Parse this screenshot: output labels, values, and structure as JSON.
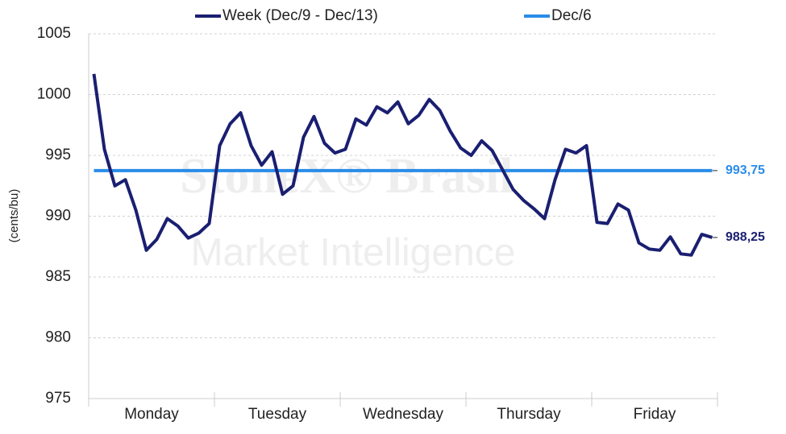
{
  "chart_data": {
    "type": "line",
    "y_label": "(cents/bu)",
    "watermark": [
      "StoneX® Brasil",
      "Market Intelligence"
    ],
    "categories": [
      null,
      null,
      null,
      null,
      null,
      null,
      "Monday",
      null,
      null,
      null,
      null,
      null,
      null,
      null,
      null,
      null,
      null,
      null,
      "Tuesday",
      null,
      null,
      null,
      null,
      null,
      null,
      null,
      null,
      null,
      null,
      null,
      "Wednesday",
      null,
      null,
      null,
      null,
      null,
      null,
      null,
      null,
      null,
      null,
      null,
      "Thursday",
      null,
      null,
      null,
      null,
      null,
      null,
      null,
      null,
      null,
      null,
      null,
      "Friday",
      null,
      null,
      null,
      null,
      null
    ],
    "series": [
      {
        "name": "Week (Dec/9 - Dec/13)",
        "color": "#1a1f71",
        "end_label": "988,25",
        "values": [
          1001.7,
          995.5,
          992.5,
          993,
          990.5,
          987.2,
          988.1,
          989.8,
          989.2,
          988.2,
          988.6,
          989.4,
          995.8,
          997.6,
          998.5,
          995.8,
          994.2,
          995.3,
          991.8,
          992.5,
          996.5,
          998.2,
          996,
          995.2,
          995.5,
          998,
          997.5,
          999,
          998.5,
          999.4,
          997.6,
          998.3,
          999.6,
          998.7,
          997,
          995.6,
          995,
          996.2,
          995.4,
          993.8,
          992.2,
          991.3,
          990.6,
          989.8,
          993,
          995.5,
          995.2,
          995.8,
          989.5,
          989.4,
          991,
          990.5,
          987.8,
          987.3,
          987.2,
          988.3,
          986.9,
          986.8,
          988.5,
          988.25
        ]
      },
      {
        "name": "Dec/6",
        "color": "#2a8ce8",
        "end_label": "993,75",
        "values": [
          993.75,
          993.75,
          993.75,
          993.75,
          993.75,
          993.75,
          993.75,
          993.75,
          993.75,
          993.75,
          993.75,
          993.75,
          993.75,
          993.75,
          993.75,
          993.75,
          993.75,
          993.75,
          993.75,
          993.75,
          993.75,
          993.75,
          993.75,
          993.75,
          993.75,
          993.75,
          993.75,
          993.75,
          993.75,
          993.75,
          993.75,
          993.75,
          993.75,
          993.75,
          993.75,
          993.75,
          993.75,
          993.75,
          993.75,
          993.75,
          993.75,
          993.75,
          993.75,
          993.75,
          993.75,
          993.75,
          993.75,
          993.75,
          993.75,
          993.75,
          993.75,
          993.75,
          993.75,
          993.75,
          993.75,
          993.75,
          993.75,
          993.75,
          993.75,
          993.75
        ]
      }
    ],
    "ylim": [
      975,
      1005
    ],
    "yticks": [
      975,
      980,
      985,
      990,
      995,
      1000,
      1005
    ],
    "grid": true
  }
}
